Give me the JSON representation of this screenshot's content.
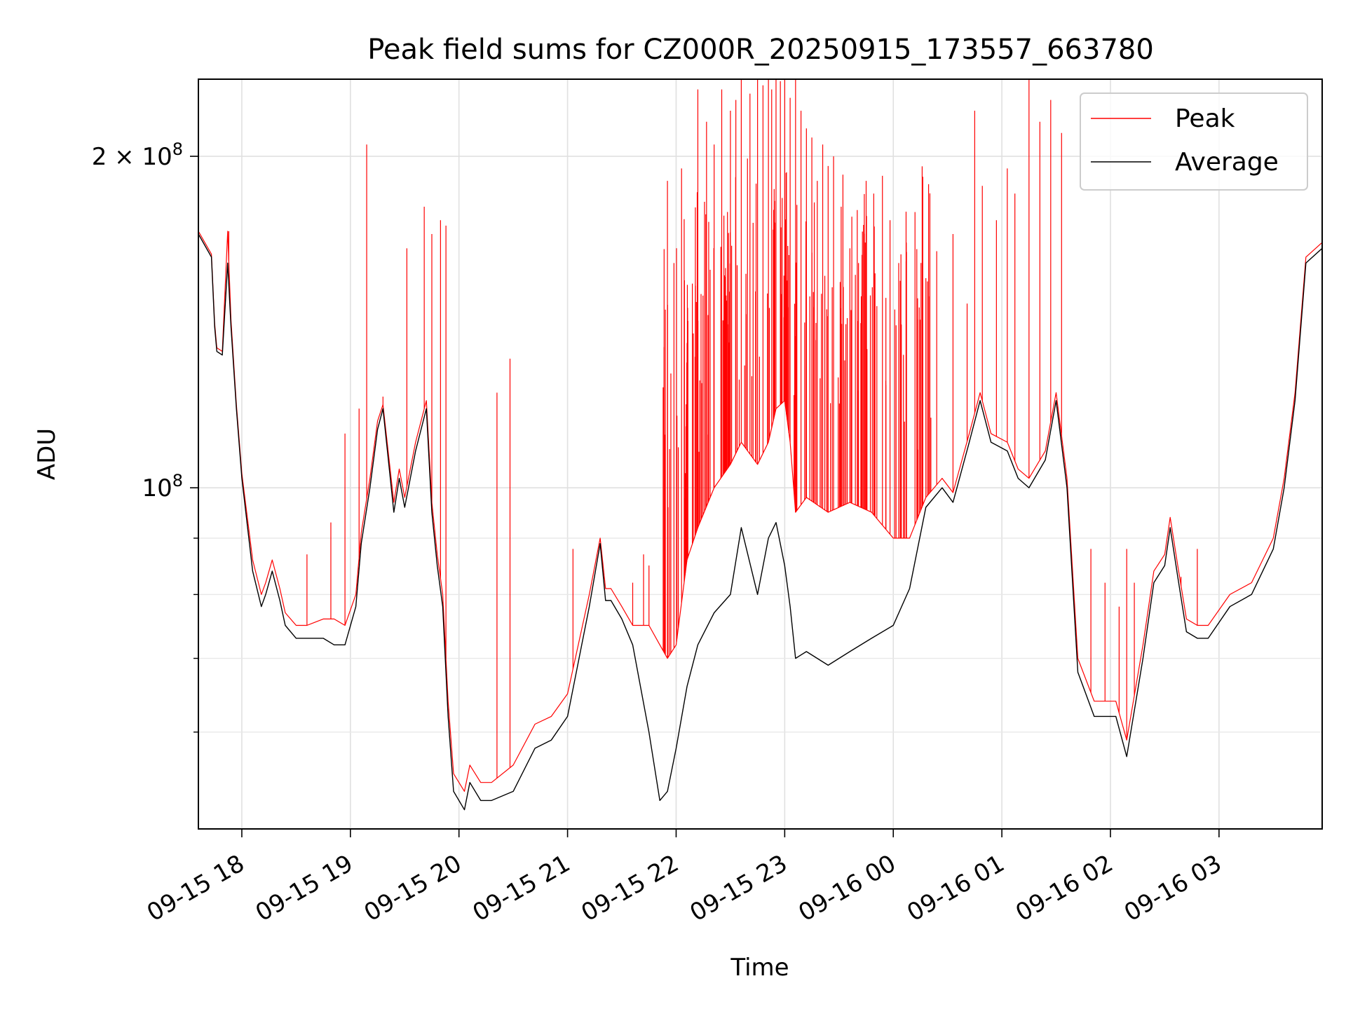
{
  "chart_data": {
    "type": "line",
    "title": "Peak field sums for CZ000R_20250915_173557_663780",
    "xlabel": "Time",
    "ylabel": "ADU",
    "yscale": "log",
    "grid": true,
    "legend_position": "top-right",
    "x_unit": "hours since 09-15 00:00",
    "xlim": [
      17.6,
      27.95
    ],
    "ylim": [
      49000000,
      235000000
    ],
    "x_ticks": [
      {
        "label": "09-15 18",
        "value": 18
      },
      {
        "label": "09-15 19",
        "value": 19
      },
      {
        "label": "09-15 20",
        "value": 20
      },
      {
        "label": "09-15 21",
        "value": 21
      },
      {
        "label": "09-15 22",
        "value": 22
      },
      {
        "label": "09-15 23",
        "value": 23
      },
      {
        "label": "09-16 00",
        "value": 24
      },
      {
        "label": "09-16 01",
        "value": 25
      },
      {
        "label": "09-16 02",
        "value": 26
      },
      {
        "label": "09-16 03",
        "value": 27
      }
    ],
    "y_ticks": [
      {
        "mantissa": "10",
        "exponent": "8",
        "value": 100000000
      },
      {
        "mantissa": "2 × 10",
        "exponent": "8",
        "value": 200000000
      }
    ],
    "y_minor_ticks": [
      60000000,
      70000000,
      80000000,
      90000000
    ],
    "series": [
      {
        "name": "Average",
        "color": "#000000",
        "x": [
          17.6,
          17.72,
          17.75,
          17.77,
          17.82,
          17.87,
          17.9,
          17.95,
          18.0,
          18.1,
          18.18,
          18.22,
          18.28,
          18.35,
          18.4,
          18.5,
          18.6,
          18.75,
          18.85,
          18.95,
          19.05,
          19.1,
          19.18,
          19.25,
          19.3,
          19.4,
          19.45,
          19.5,
          19.6,
          19.7,
          19.75,
          19.8,
          19.85,
          19.9,
          19.95,
          20.05,
          20.1,
          20.2,
          20.3,
          20.5,
          20.7,
          20.85,
          21.0,
          21.2,
          21.3,
          21.35,
          21.4,
          21.5,
          21.6,
          21.75,
          21.85,
          21.92,
          22.0,
          22.1,
          22.2,
          22.35,
          22.5,
          22.6,
          22.75,
          22.85,
          22.92,
          23.0,
          23.05,
          23.1,
          23.2,
          23.4,
          23.6,
          23.8,
          24.0,
          24.15,
          24.3,
          24.45,
          24.55,
          24.7,
          24.8,
          24.9,
          25.05,
          25.15,
          25.25,
          25.4,
          25.5,
          25.6,
          25.7,
          25.85,
          25.95,
          26.05,
          26.15,
          26.3,
          26.4,
          26.5,
          26.55,
          26.62,
          26.7,
          26.8,
          26.9,
          27.1,
          27.3,
          27.5,
          27.6,
          27.7,
          27.8,
          27.95
        ],
        "values": [
          170000000,
          162000000,
          140000000,
          133000000,
          132000000,
          160000000,
          140000000,
          118000000,
          102000000,
          84000000,
          78000000,
          80000000,
          84000000,
          79000000,
          75000000,
          73000000,
          73000000,
          73000000,
          72000000,
          72000000,
          78000000,
          89000000,
          100000000,
          113000000,
          118000000,
          95000000,
          102000000,
          96000000,
          108000000,
          118000000,
          95000000,
          85000000,
          78000000,
          62000000,
          53000000,
          51000000,
          54000000,
          52000000,
          52000000,
          53000000,
          58000000,
          59000000,
          62000000,
          78000000,
          89000000,
          79000000,
          79000000,
          76000000,
          72000000,
          60000000,
          52000000,
          53000000,
          58000000,
          66000000,
          72000000,
          77000000,
          80000000,
          92000000,
          80000000,
          90000000,
          93000000,
          85000000,
          78000000,
          70000000,
          71000000,
          69000000,
          71000000,
          73000000,
          75000000,
          81000000,
          96000000,
          100000000,
          97000000,
          110000000,
          120000000,
          110000000,
          108000000,
          102000000,
          100000000,
          106000000,
          120000000,
          100000000,
          68000000,
          62000000,
          62000000,
          62000000,
          57000000,
          70000000,
          82000000,
          85000000,
          92000000,
          83000000,
          74000000,
          73000000,
          73000000,
          78000000,
          80000000,
          88000000,
          100000000,
          120000000,
          160000000,
          165000000
        ],
        "stroke_width": 1.4
      },
      {
        "name": "Peak",
        "color": "#ff0000",
        "x": [
          17.6,
          17.72,
          17.75,
          17.77,
          17.82,
          17.87,
          17.9,
          17.95,
          18.0,
          18.1,
          18.18,
          18.22,
          18.28,
          18.35,
          18.4,
          18.5,
          18.6,
          18.75,
          18.85,
          18.95,
          19.05,
          19.1,
          19.18,
          19.25,
          19.3,
          19.4,
          19.45,
          19.5,
          19.6,
          19.7,
          19.75,
          19.8,
          19.85,
          19.9,
          19.95,
          20.05,
          20.1,
          20.2,
          20.3,
          20.5,
          20.7,
          20.85,
          21.0,
          21.2,
          21.3,
          21.35,
          21.4,
          21.5,
          21.6,
          21.75,
          21.85,
          21.92,
          22.0,
          22.1,
          22.2,
          22.35,
          22.5,
          22.6,
          22.75,
          22.85,
          22.92,
          23.0,
          23.05,
          23.1,
          23.2,
          23.4,
          23.6,
          23.8,
          24.0,
          24.15,
          24.3,
          24.45,
          24.55,
          24.7,
          24.8,
          24.9,
          25.05,
          25.15,
          25.25,
          25.4,
          25.5,
          25.6,
          25.7,
          25.85,
          25.95,
          26.05,
          26.15,
          26.3,
          26.4,
          26.5,
          26.55,
          26.62,
          26.7,
          26.8,
          26.9,
          27.1,
          27.3,
          27.5,
          27.6,
          27.7,
          27.8,
          27.95
        ],
        "values": [
          171000000,
          163000000,
          141000000,
          134000000,
          133000000,
          171000000,
          142000000,
          119000000,
          103000000,
          86000000,
          80000000,
          82000000,
          86000000,
          81000000,
          77000000,
          75000000,
          75000000,
          76000000,
          76000000,
          75000000,
          80000000,
          91000000,
          102000000,
          115000000,
          119000000,
          97000000,
          104000000,
          98000000,
          110000000,
          120000000,
          97000000,
          87000000,
          80000000,
          64000000,
          55000000,
          53000000,
          56000000,
          54000000,
          54000000,
          56000000,
          61000000,
          62000000,
          65000000,
          80000000,
          90000000,
          81000000,
          81000000,
          78000000,
          75000000,
          75000000,
          72000000,
          70000000,
          72000000,
          86000000,
          92000000,
          100000000,
          105000000,
          110000000,
          105000000,
          110000000,
          118000000,
          120000000,
          110000000,
          95000000,
          98000000,
          95000000,
          97000000,
          95000000,
          90000000,
          90000000,
          98000000,
          102000000,
          99000000,
          112000000,
          122000000,
          112000000,
          110000000,
          104000000,
          102000000,
          108000000,
          122000000,
          102000000,
          70000000,
          64000000,
          64000000,
          64000000,
          59000000,
          72000000,
          84000000,
          87000000,
          94000000,
          85000000,
          76000000,
          75000000,
          75000000,
          80000000,
          82000000,
          90000000,
          102000000,
          122000000,
          162000000,
          167000000
        ],
        "stroke_width": 1.2
      }
    ],
    "peak_spikes": {
      "color": "#ff0000",
      "x": [
        17.88,
        18.28,
        18.6,
        18.82,
        18.95,
        19.08,
        19.15,
        19.3,
        19.52,
        19.68,
        19.75,
        19.83,
        19.88,
        20.35,
        20.47,
        21.05,
        21.6,
        21.7,
        21.75,
        21.92,
        21.98,
        22.05,
        22.2,
        22.28,
        22.35,
        22.42,
        22.5,
        22.55,
        22.6,
        22.68,
        22.75,
        22.8,
        22.85,
        22.88,
        22.92,
        22.96,
        23.0,
        23.05,
        23.1,
        23.15,
        23.2,
        23.25,
        23.3,
        23.35,
        23.4,
        23.45,
        23.52,
        23.6,
        23.68,
        23.75,
        23.82,
        23.9,
        23.97,
        24.05,
        24.12,
        24.2,
        24.3,
        24.4,
        24.55,
        24.68,
        24.75,
        24.82,
        24.95,
        25.05,
        25.12,
        25.25,
        25.35,
        25.45,
        25.55,
        25.82,
        25.95,
        26.08,
        26.15,
        26.22,
        26.65,
        26.8
      ],
      "values": [
        171000000,
        84000000,
        87000000,
        93000000,
        112000000,
        118000000,
        205000000,
        121000000,
        165000000,
        180000000,
        170000000,
        175000000,
        173000000,
        122000000,
        131000000,
        88000000,
        82000000,
        87000000,
        85000000,
        190000000,
        160000000,
        195000000,
        230000000,
        215000000,
        205000000,
        230000000,
        220000000,
        225000000,
        235000000,
        228000000,
        235000000,
        232000000,
        235000000,
        230000000,
        235000000,
        234000000,
        235000000,
        226000000,
        235000000,
        220000000,
        212000000,
        208000000,
        190000000,
        205000000,
        196000000,
        200000000,
        180000000,
        165000000,
        160000000,
        190000000,
        185000000,
        192000000,
        175000000,
        160000000,
        167000000,
        178000000,
        155000000,
        164000000,
        170000000,
        147000000,
        220000000,
        188000000,
        175000000,
        195000000,
        185000000,
        235000000,
        215000000,
        225000000,
        210000000,
        88000000,
        82000000,
        78000000,
        88000000,
        82000000,
        83000000,
        88000000
      ],
      "band_start": 21.88,
      "band_end": 24.35,
      "band_count": 180,
      "band_max": 200000000,
      "stroke_width": 1.2
    }
  }
}
